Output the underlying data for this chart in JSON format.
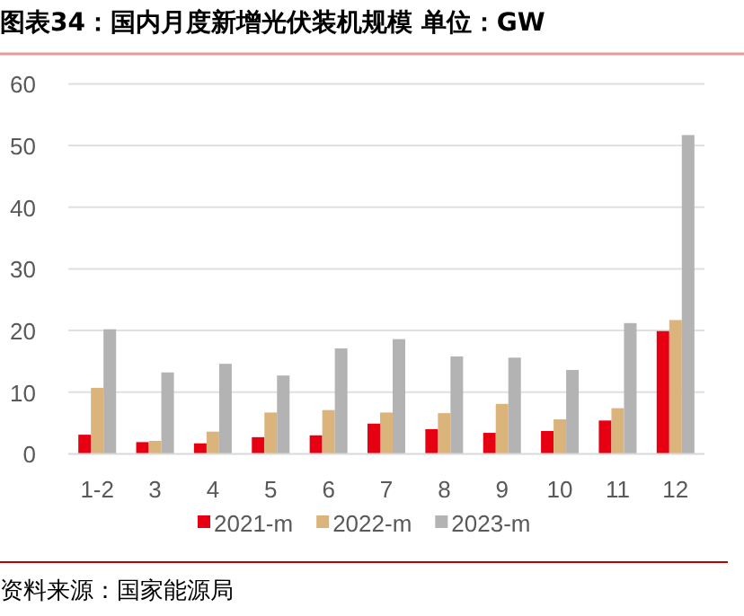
{
  "chart_data": {
    "type": "bar",
    "title": "图表34：国内月度新增光伏装机规模 单位：GW",
    "categories": [
      "1-2",
      "3",
      "4",
      "5",
      "6",
      "7",
      "8",
      "9",
      "10",
      "11",
      "12"
    ],
    "series": [
      {
        "name": "2021-m",
        "color": "#e60012",
        "values": [
          3.1,
          1.9,
          1.7,
          2.7,
          3.0,
          4.9,
          4.0,
          3.4,
          3.7,
          5.4,
          19.9
        ]
      },
      {
        "name": "2022-m",
        "color": "#dbb47c",
        "values": [
          10.7,
          2.1,
          3.6,
          6.7,
          7.1,
          6.7,
          6.6,
          8.1,
          5.6,
          7.4,
          21.7
        ]
      },
      {
        "name": "2023-m",
        "color": "#b3b3b3",
        "values": [
          20.2,
          13.2,
          14.6,
          12.7,
          17.1,
          18.6,
          15.8,
          15.6,
          13.6,
          21.2,
          51.7
        ]
      }
    ],
    "ylim": [
      0,
      60
    ],
    "yticks": [
      0,
      10,
      20,
      30,
      40,
      50,
      60
    ],
    "grid": "y",
    "legend": "bottom",
    "annotations": [
      "资料来源：国家能源局"
    ]
  }
}
